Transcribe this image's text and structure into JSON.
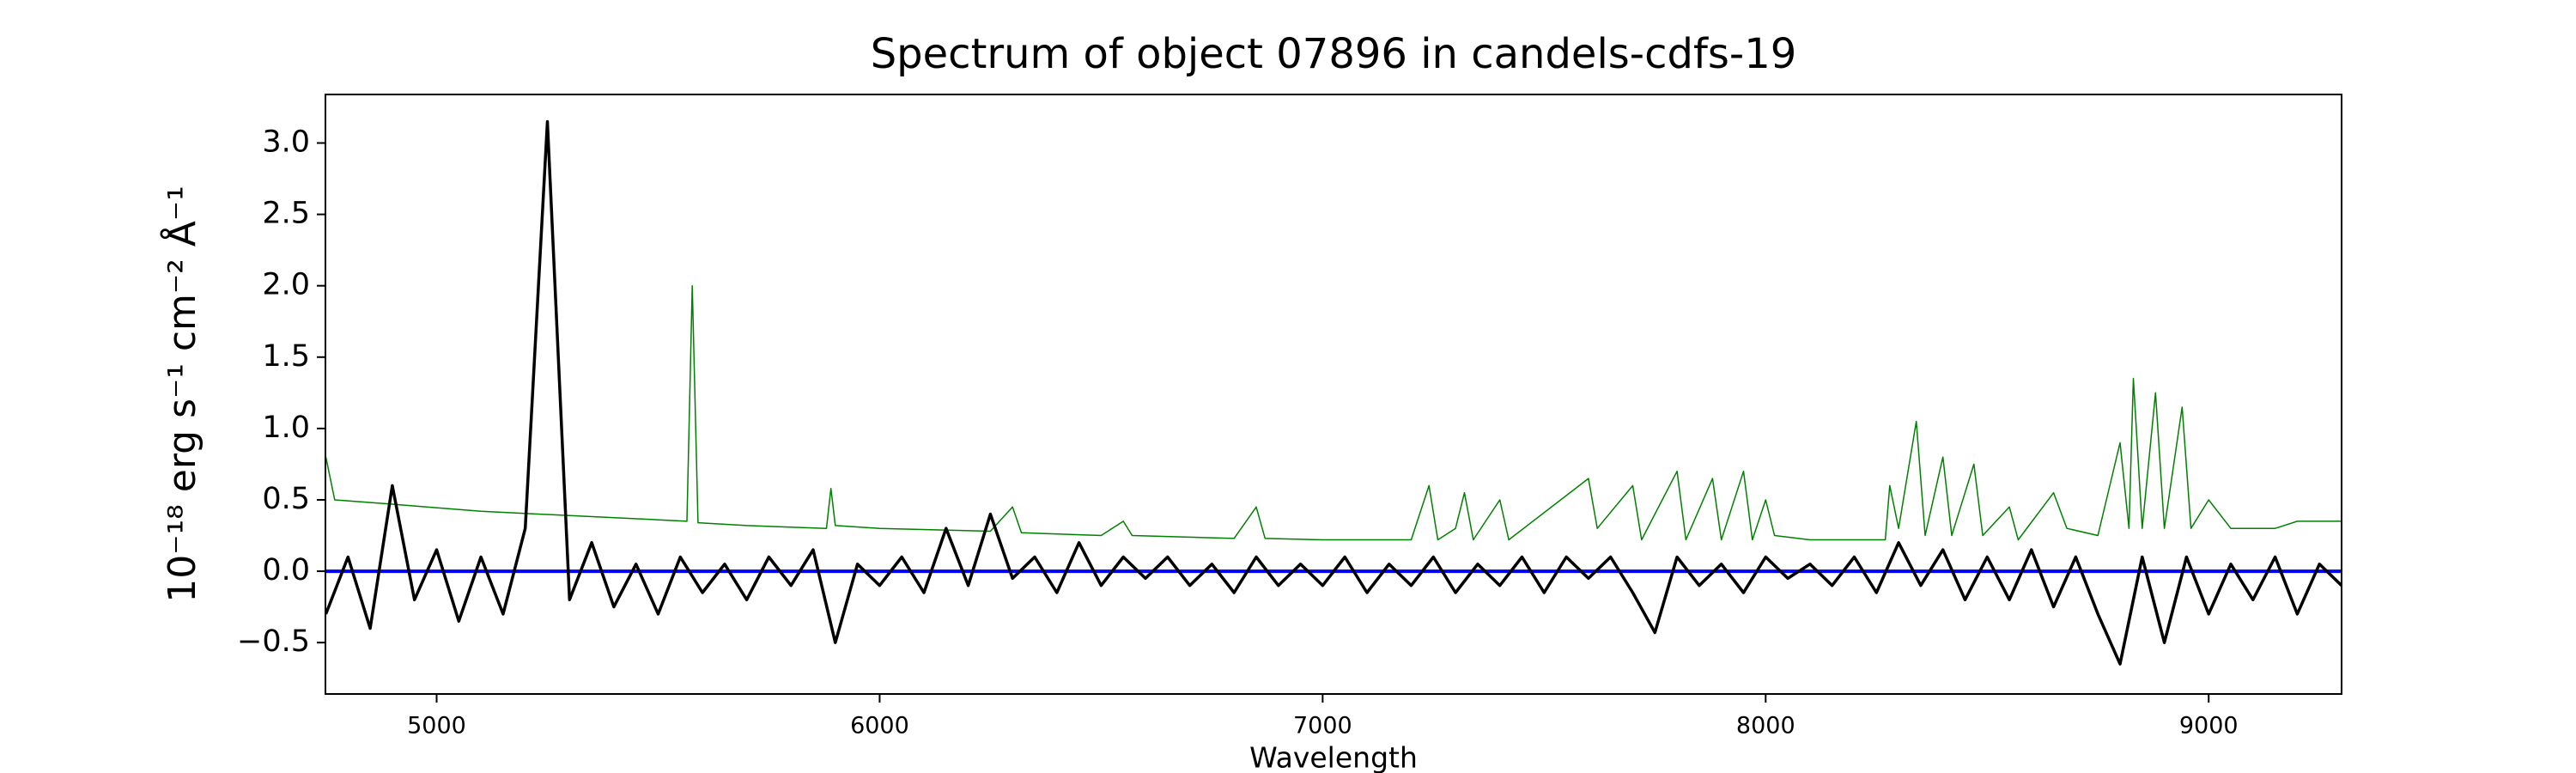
{
  "chart_data": {
    "type": "line",
    "title": "Spectrum of object 07896 in candels-cdfs-19",
    "x_label": "Wavelength",
    "y_label": "10⁻¹⁸ erg s⁻¹ cm⁻² Å⁻¹",
    "xlim": [
      4749,
      9300
    ],
    "ylim": [
      -0.86,
      3.34
    ],
    "xticks": [
      5000,
      6000,
      7000,
      8000,
      9000
    ],
    "yticks": [
      {
        "value": -0.5,
        "label": "−0.5"
      },
      {
        "value": 0,
        "label": "0.0"
      },
      0.5,
      {
        "value": 1,
        "label": "1.0"
      },
      1.5,
      {
        "value": 2,
        "label": "2.0"
      },
      2.5,
      {
        "value": 3,
        "label": "3.0"
      }
    ],
    "series": [
      {
        "color": "#008000",
        "width": 1.5,
        "x": [
          4750,
          4770,
          4900,
          5100,
          5300,
          5500,
          5565,
          5577,
          5590,
          5700,
          5880,
          5890,
          5900,
          6000,
          6250,
          6300,
          6320,
          6500,
          6550,
          6570,
          6800,
          6850,
          6870,
          7000,
          7200,
          7240,
          7260,
          7300,
          7320,
          7340,
          7400,
          7420,
          7600,
          7620,
          7700,
          7720,
          7800,
          7820,
          7880,
          7900,
          7950,
          7970,
          8000,
          8020,
          8100,
          8270,
          8280,
          8300,
          8340,
          8360,
          8400,
          8420,
          8470,
          8490,
          8550,
          8570,
          8650,
          8680,
          8750,
          8800,
          8820,
          8830,
          8850,
          8880,
          8900,
          8940,
          8960,
          9000,
          9050,
          9150,
          9200,
          9300
        ],
        "values": [
          0.8,
          0.5,
          0.47,
          0.42,
          0.39,
          0.36,
          0.35,
          2.0,
          0.34,
          0.32,
          0.3,
          0.58,
          0.32,
          0.3,
          0.28,
          0.45,
          0.27,
          0.25,
          0.35,
          0.25,
          0.23,
          0.45,
          0.23,
          0.22,
          0.22,
          0.6,
          0.22,
          0.3,
          0.55,
          0.22,
          0.5,
          0.22,
          0.65,
          0.3,
          0.6,
          0.22,
          0.7,
          0.22,
          0.65,
          0.22,
          0.7,
          0.22,
          0.5,
          0.25,
          0.22,
          0.22,
          0.6,
          0.3,
          1.05,
          0.25,
          0.8,
          0.25,
          0.75,
          0.25,
          0.45,
          0.22,
          0.55,
          0.3,
          0.25,
          0.9,
          0.3,
          1.35,
          0.3,
          1.25,
          0.3,
          1.15,
          0.3,
          0.5,
          0.3,
          0.3,
          0.35,
          0.35
        ]
      },
      {
        "color": "#0000ff",
        "width": 4,
        "x": [
          4750,
          9300
        ],
        "values": [
          0,
          0
        ]
      },
      {
        "color": "#000000",
        "width": 3.5,
        "x": [
          4750,
          4800,
          4850,
          4900,
          4950,
          5000,
          5050,
          5100,
          5150,
          5200,
          5250,
          5300,
          5350,
          5400,
          5450,
          5500,
          5550,
          5600,
          5650,
          5700,
          5750,
          5800,
          5850,
          5900,
          5950,
          6000,
          6050,
          6100,
          6150,
          6200,
          6250,
          6300,
          6350,
          6400,
          6450,
          6500,
          6550,
          6600,
          6650,
          6700,
          6750,
          6800,
          6850,
          6900,
          6950,
          7000,
          7050,
          7100,
          7150,
          7200,
          7250,
          7300,
          7350,
          7400,
          7450,
          7500,
          7550,
          7600,
          7650,
          7700,
          7750,
          7800,
          7850,
          7900,
          7950,
          8000,
          8050,
          8100,
          8150,
          8200,
          8250,
          8300,
          8350,
          8400,
          8450,
          8500,
          8550,
          8600,
          8650,
          8700,
          8750,
          8800,
          8850,
          8900,
          8950,
          9000,
          9050,
          9100,
          9150,
          9200,
          9250,
          9300
        ],
        "values": [
          -0.3,
          0.1,
          -0.4,
          0.6,
          -0.2,
          0.15,
          -0.35,
          0.1,
          -0.3,
          0.3,
          3.15,
          -0.2,
          0.2,
          -0.25,
          0.05,
          -0.3,
          0.1,
          -0.15,
          0.05,
          -0.2,
          0.1,
          -0.1,
          0.15,
          -0.5,
          0.05,
          -0.1,
          0.1,
          -0.15,
          0.3,
          -0.1,
          0.4,
          -0.05,
          0.1,
          -0.15,
          0.2,
          -0.1,
          0.1,
          -0.05,
          0.1,
          -0.1,
          0.05,
          -0.15,
          0.1,
          -0.1,
          0.05,
          -0.1,
          0.1,
          -0.15,
          0.05,
          -0.1,
          0.1,
          -0.15,
          0.05,
          -0.1,
          0.1,
          -0.15,
          0.1,
          -0.05,
          0.1,
          -0.15,
          -0.43,
          0.1,
          -0.1,
          0.05,
          -0.15,
          0.1,
          -0.05,
          0.05,
          -0.1,
          0.1,
          -0.15,
          0.2,
          -0.1,
          0.15,
          -0.2,
          0.1,
          -0.2,
          0.15,
          -0.25,
          0.1,
          -0.3,
          -0.65,
          0.1,
          -0.5,
          0.1,
          -0.3,
          0.05,
          -0.2,
          0.1,
          -0.3,
          0.05,
          -0.1
        ]
      }
    ]
  }
}
